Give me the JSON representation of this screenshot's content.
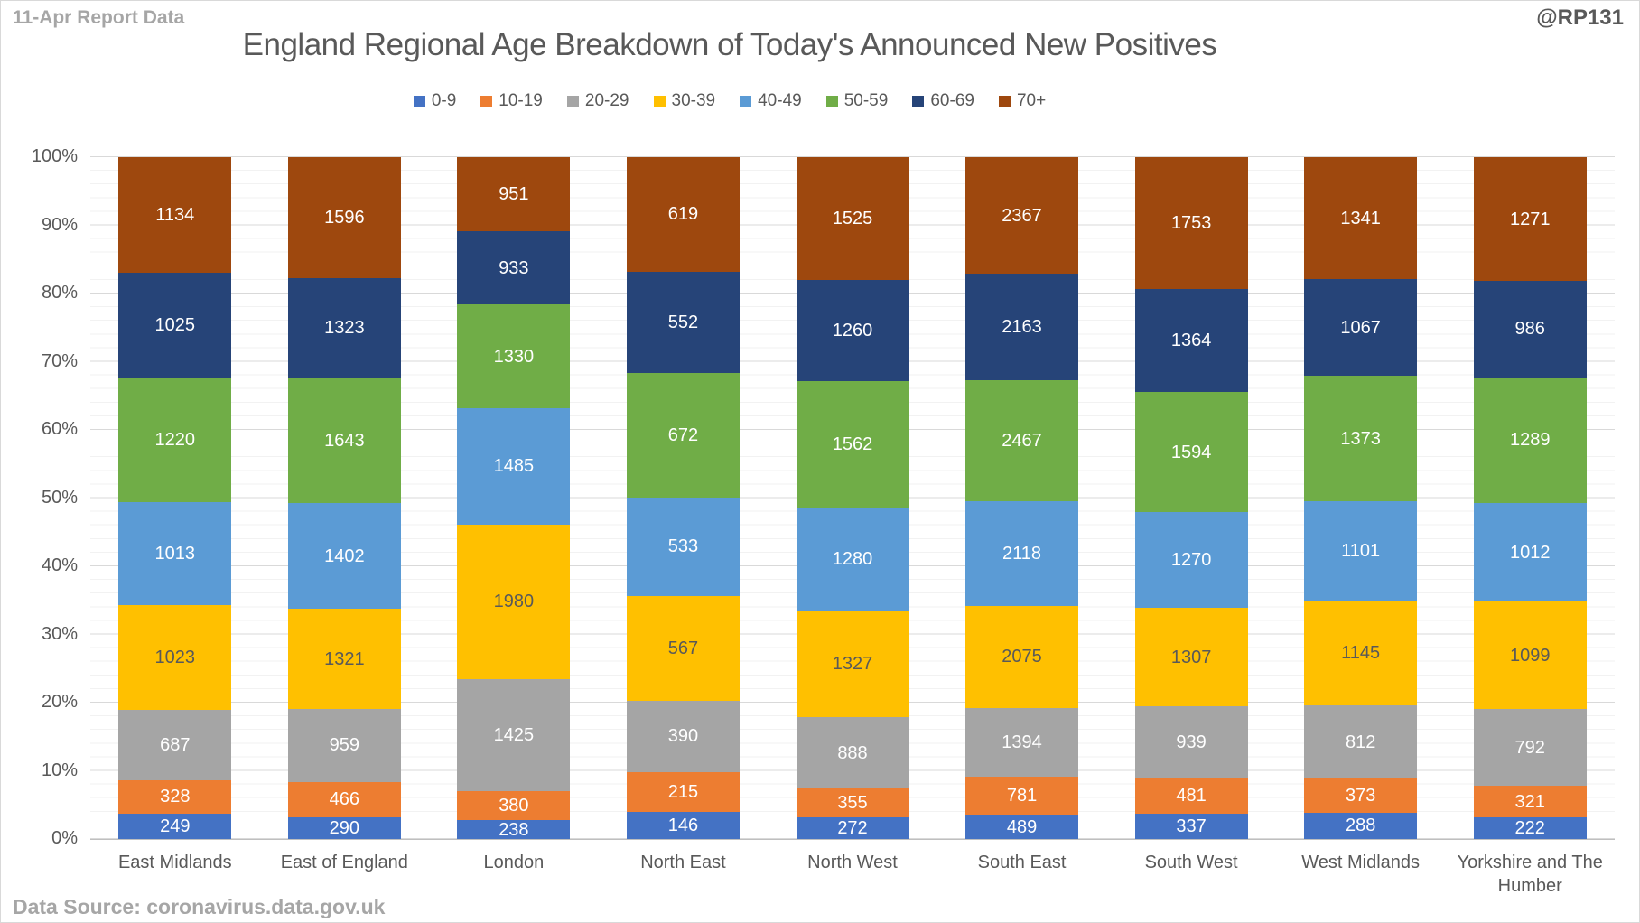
{
  "header": {
    "report_label": "11-Apr Report Data",
    "watermark": "@RP131",
    "title": "England Regional Age Breakdown of Today's Announced New Positives"
  },
  "footer": {
    "source": "Data Source: coronavirus.data.gov.uk"
  },
  "chart_data": {
    "type": "bar",
    "variant": "100%-stacked-column",
    "title": "England Regional Age Breakdown of Today's Announced New Positives",
    "legend_position": "top",
    "grid": {
      "major_unit_pct": 10,
      "minor_unit_pct": 2
    },
    "y_axis": {
      "min_pct": 0,
      "max_pct": 100,
      "tick_labels": [
        "0%",
        "10%",
        "20%",
        "30%",
        "40%",
        "50%",
        "60%",
        "70%",
        "80%",
        "90%",
        "100%"
      ]
    },
    "categories": [
      "East Midlands",
      "East of England",
      "London",
      "North East",
      "North West",
      "South East",
      "South West",
      "West Midlands",
      "Yorkshire and The Humber"
    ],
    "series": [
      {
        "name": "0-9",
        "color": "#4472c4",
        "label_color": "#ffffff",
        "values": [
          249,
          290,
          238,
          146,
          272,
          489,
          337,
          288,
          222
        ]
      },
      {
        "name": "10-19",
        "color": "#ed7d31",
        "label_color": "#ffffff",
        "values": [
          328,
          466,
          380,
          215,
          355,
          781,
          481,
          373,
          321
        ]
      },
      {
        "name": "20-29",
        "color": "#a5a5a5",
        "label_color": "#ffffff",
        "values": [
          687,
          959,
          1425,
          390,
          888,
          1394,
          939,
          812,
          792
        ]
      },
      {
        "name": "30-39",
        "color": "#ffc000",
        "label_color": "#595959",
        "values": [
          1023,
          1321,
          1980,
          567,
          1327,
          2075,
          1307,
          1145,
          1099
        ]
      },
      {
        "name": "40-49",
        "color": "#5b9bd5",
        "label_color": "#ffffff",
        "values": [
          1013,
          1402,
          1485,
          533,
          1280,
          2118,
          1270,
          1101,
          1012
        ]
      },
      {
        "name": "50-59",
        "color": "#70ad47",
        "label_color": "#ffffff",
        "values": [
          1220,
          1643,
          1330,
          672,
          1562,
          2467,
          1594,
          1373,
          1289
        ]
      },
      {
        "name": "60-69",
        "color": "#264478",
        "label_color": "#ffffff",
        "values": [
          1025,
          1323,
          933,
          552,
          1260,
          2163,
          1364,
          1067,
          986
        ]
      },
      {
        "name": "70+",
        "color": "#9e480e",
        "label_color": "#ffffff",
        "values": [
          1134,
          1596,
          951,
          619,
          1525,
          2367,
          1753,
          1341,
          1271
        ]
      }
    ]
  }
}
